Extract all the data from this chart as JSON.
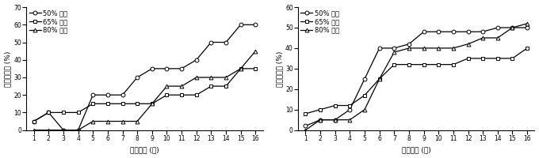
{
  "weeks": [
    1,
    2,
    3,
    4,
    5,
    6,
    7,
    8,
    9,
    10,
    11,
    12,
    13,
    14,
    15,
    16
  ],
  "female": {
    "50": [
      5,
      10,
      0,
      0,
      20,
      20,
      20,
      30,
      35,
      35,
      35,
      40,
      50,
      50,
      60,
      60
    ],
    "65": [
      5,
      10,
      10,
      10,
      15,
      15,
      15,
      15,
      15,
      20,
      20,
      20,
      25,
      25,
      35,
      35
    ],
    "80": [
      0,
      0,
      0,
      0,
      5,
      5,
      5,
      5,
      15,
      25,
      25,
      30,
      30,
      30,
      35,
      45
    ]
  },
  "male": {
    "50": [
      2,
      5,
      5,
      10,
      25,
      40,
      40,
      42,
      48,
      48,
      48,
      48,
      48,
      50,
      50,
      50
    ],
    "65": [
      8,
      10,
      12,
      12,
      17,
      25,
      32,
      32,
      32,
      32,
      32,
      35,
      35,
      35,
      35,
      40
    ],
    "80": [
      0,
      5,
      5,
      5,
      10,
      25,
      38,
      40,
      40,
      40,
      40,
      42,
      45,
      45,
      50,
      52
    ]
  },
  "female_ylabel": "누적폐사율 (%)",
  "male_ylabel": "누적폐사율 (%)",
  "xlabel_female": "경과기간 (주)",
  "xlabel_male": "경과기간 (주)",
  "female_ylim": [
    0,
    70
  ],
  "male_ylim": [
    0,
    60
  ],
  "female_yticks": [
    0,
    10,
    20,
    30,
    40,
    50,
    60,
    70
  ],
  "male_yticks": [
    0,
    10,
    20,
    30,
    40,
    50,
    60
  ],
  "legend_female": [
    "50% 암컷",
    "65% 암컷",
    "80% 암컷"
  ],
  "legend_male": [
    "50% 수컷",
    "65% 수컷",
    "80% 수컷"
  ],
  "line_color": "#000000",
  "markers": [
    "o",
    "s",
    "^"
  ],
  "markersize": 3.5,
  "linewidth": 0.9,
  "fontsize_label": 6.5,
  "fontsize_tick": 5.5,
  "fontsize_legend": 6.0
}
